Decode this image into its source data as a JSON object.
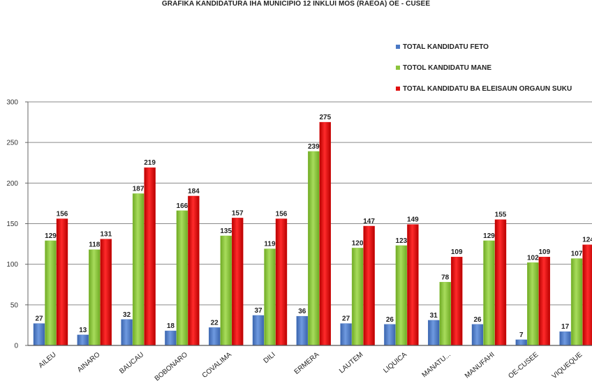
{
  "chart_data": {
    "type": "bar",
    "title": "GRAFIKA KANDIDATURA IHA MUNICIPIO 12 INKLUI MOS (RAEOA) OE - CUSEE",
    "categories": [
      "AILEU",
      "AINARO",
      "BAUCAU",
      "BOBONARO",
      "COVALIMA",
      "DILI",
      "ERMERA",
      "LAUTEM",
      "LIQUICA",
      "MANATU...",
      "MANUFAHI",
      "OE-CUSEE",
      "VIQUEQUE"
    ],
    "series": [
      {
        "name": "TOTAL KANDIDATU FETO",
        "color": "#4a78c4",
        "values": [
          27,
          13,
          32,
          18,
          22,
          37,
          36,
          27,
          26,
          31,
          26,
          7,
          17
        ]
      },
      {
        "name": "TOTOL KANDIDATU MANE",
        "color": "#8cc43c",
        "values": [
          129,
          118,
          187,
          166,
          135,
          119,
          239,
          120,
          123,
          78,
          129,
          102,
          107
        ]
      },
      {
        "name": "TOTAL KANDIDATU BA ELEISAUN ORGAUN SUKU",
        "color": "#e01010",
        "values": [
          156,
          131,
          219,
          184,
          157,
          156,
          275,
          147,
          149,
          109,
          155,
          109,
          124
        ]
      }
    ],
    "ylim": [
      0,
      300
    ],
    "yticks": [
      0,
      50,
      100,
      150,
      200,
      250,
      300
    ],
    "grid": true,
    "legend_position": "top-right"
  }
}
